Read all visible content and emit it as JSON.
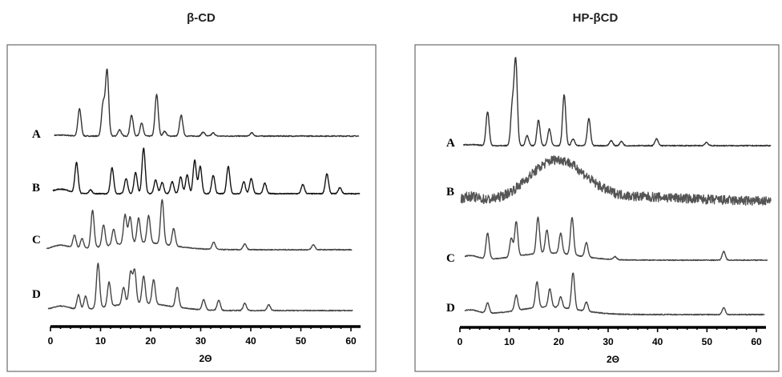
{
  "chart_data": [
    {
      "type": "line",
      "title": "β-CD",
      "xlabel": "2Θ",
      "xlim": [
        0,
        62
      ],
      "xticks": [
        "0",
        "10",
        "20",
        "30",
        "40",
        "50",
        "60"
      ],
      "y_axis": "none",
      "grid": false,
      "series": [
        {
          "name": "A",
          "color": "#333333",
          "baseline": 1.0,
          "peaks": [
            [
              5.8,
              34
            ],
            [
              10.5,
              40
            ],
            [
              11.3,
              82
            ],
            [
              13.8,
              8
            ],
            [
              16.2,
              26
            ],
            [
              18.2,
              16
            ],
            [
              21.2,
              52
            ],
            [
              22.8,
              6
            ],
            [
              26.1,
              26
            ],
            [
              30.5,
              5
            ],
            [
              32.5,
              4
            ],
            [
              40.2,
              4
            ]
          ]
        },
        {
          "name": "B",
          "color": "#111111",
          "baseline": 1.0,
          "peaks": [
            [
              5.2,
              40
            ],
            [
              8.0,
              5
            ],
            [
              12.3,
              34
            ],
            [
              15.1,
              20
            ],
            [
              17.0,
              28
            ],
            [
              18.6,
              60
            ],
            [
              21.0,
              18
            ],
            [
              22.3,
              15
            ],
            [
              24.3,
              16
            ],
            [
              26.0,
              22
            ],
            [
              27.3,
              25
            ],
            [
              28.8,
              44
            ],
            [
              29.9,
              36
            ],
            [
              32.5,
              24
            ],
            [
              35.5,
              36
            ],
            [
              38.6,
              16
            ],
            [
              40.1,
              20
            ],
            [
              42.8,
              14
            ],
            [
              50.4,
              12
            ],
            [
              55.2,
              26
            ],
            [
              57.8,
              8
            ]
          ]
        },
        {
          "name": "C",
          "color": "#444444",
          "baseline": 1.0,
          "peaks": [
            [
              4.8,
              18
            ],
            [
              6.3,
              14
            ],
            [
              8.4,
              52
            ],
            [
              10.6,
              30
            ],
            [
              12.6,
              22
            ],
            [
              14.9,
              40
            ],
            [
              15.9,
              36
            ],
            [
              17.6,
              34
            ],
            [
              19.6,
              38
            ],
            [
              22.3,
              62
            ],
            [
              24.6,
              24
            ],
            [
              32.6,
              10
            ],
            [
              38.8,
              8
            ],
            [
              52.5,
              7
            ]
          ]
        },
        {
          "name": "D",
          "color": "#444444",
          "baseline": 1.0,
          "peaks": [
            [
              5.6,
              20
            ],
            [
              7.0,
              18
            ],
            [
              9.5,
              62
            ],
            [
              11.7,
              34
            ],
            [
              14.6,
              24
            ],
            [
              16.0,
              44
            ],
            [
              16.8,
              46
            ],
            [
              18.6,
              38
            ],
            [
              20.6,
              34
            ],
            [
              25.3,
              28
            ],
            [
              30.6,
              14
            ],
            [
              33.6,
              14
            ],
            [
              38.8,
              10
            ],
            [
              43.6,
              8
            ]
          ]
        }
      ]
    },
    {
      "type": "line",
      "title": "HP-βCD",
      "xlabel": "2Θ",
      "xlim": [
        0,
        62
      ],
      "xticks": [
        "0",
        "10",
        "20",
        "30",
        "40",
        "50",
        "60"
      ],
      "y_axis": "none",
      "grid": false,
      "series": [
        {
          "name": "A",
          "color": "#333333",
          "baseline": 1.0,
          "peaks": [
            [
              5.6,
              40
            ],
            [
              10.6,
              46
            ],
            [
              11.3,
              100
            ],
            [
              13.6,
              12
            ],
            [
              15.9,
              30
            ],
            [
              18.1,
              20
            ],
            [
              21.1,
              60
            ],
            [
              22.9,
              8
            ],
            [
              26.1,
              32
            ],
            [
              30.6,
              6
            ],
            [
              32.7,
              5
            ],
            [
              39.8,
              8
            ],
            [
              49.9,
              4
            ]
          ]
        },
        {
          "name": "B",
          "color": "#555555",
          "baseline": 1.0,
          "halo": {
            "center": 19.6,
            "height": 50,
            "width": 5.5
          }
        },
        {
          "name": "C",
          "color": "#444444",
          "baseline": 1.0,
          "peaks": [
            [
              5.6,
              36
            ],
            [
              10.4,
              26
            ],
            [
              11.4,
              48
            ],
            [
              15.8,
              50
            ],
            [
              17.6,
              32
            ],
            [
              20.4,
              28
            ],
            [
              22.7,
              52
            ],
            [
              25.6,
              20
            ],
            [
              31.4,
              4
            ],
            [
              53.4,
              12
            ]
          ]
        },
        {
          "name": "D",
          "color": "#444444",
          "baseline": 1.0,
          "peaks": [
            [
              5.6,
              14
            ],
            [
              11.4,
              20
            ],
            [
              15.6,
              34
            ],
            [
              18.2,
              24
            ],
            [
              20.4,
              14
            ],
            [
              22.9,
              48
            ],
            [
              25.6,
              12
            ],
            [
              53.4,
              9
            ]
          ]
        }
      ]
    }
  ]
}
